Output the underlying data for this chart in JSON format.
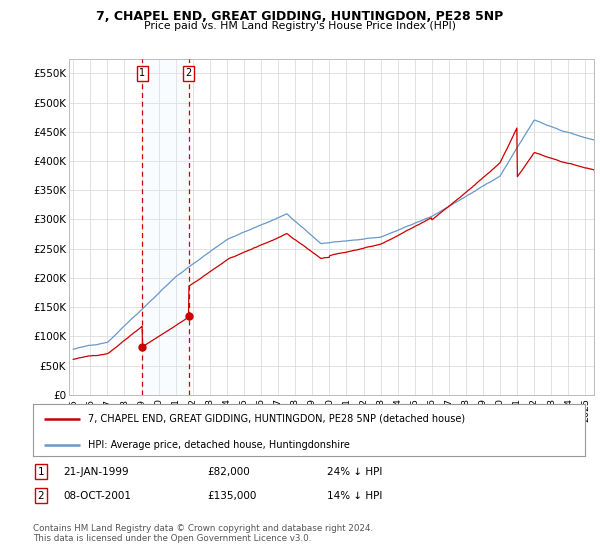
{
  "title": "7, CHAPEL END, GREAT GIDDING, HUNTINGDON, PE28 5NP",
  "subtitle": "Price paid vs. HM Land Registry's House Price Index (HPI)",
  "ylim": [
    0,
    575000
  ],
  "xlim_start": 1994.75,
  "xlim_end": 2025.5,
  "sale1_x": 1999.05,
  "sale1_price": 82000,
  "sale2_x": 2001.77,
  "sale2_price": 135000,
  "red_line_label": "7, CHAPEL END, GREAT GIDDING, HUNTINGDON, PE28 5NP (detached house)",
  "blue_line_label": "HPI: Average price, detached house, Huntingdonshire",
  "table_row1": [
    "1",
    "21-JAN-1999",
    "£82,000",
    "24% ↓ HPI"
  ],
  "table_row2": [
    "2",
    "08-OCT-2001",
    "£135,000",
    "14% ↓ HPI"
  ],
  "copyright_text": "Contains HM Land Registry data © Crown copyright and database right 2024.\nThis data is licensed under the Open Government Licence v3.0.",
  "red_color": "#cc0000",
  "blue_color": "#6699cc",
  "shade_color": "#ddeeff",
  "grid_color": "#dddddd",
  "bg_color": "#ffffff"
}
